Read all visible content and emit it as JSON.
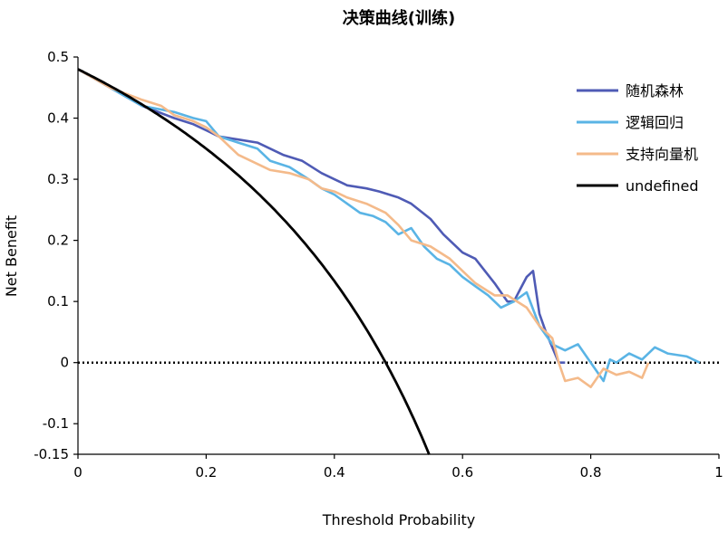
{
  "chart_data": {
    "type": "line",
    "title": "决策曲线(训练)",
    "xlabel": "Threshold Probability",
    "ylabel": "Net Benefit",
    "xlim": [
      0,
      1
    ],
    "ylim": [
      -0.15,
      0.5
    ],
    "xticks": [
      0,
      0.2,
      0.4,
      0.6,
      0.8,
      1
    ],
    "xtick_labels": [
      "0",
      "0.2",
      "0.4",
      "0.6",
      "0.8",
      "1"
    ],
    "yticks": [
      -0.15,
      -0.1,
      0,
      0.1,
      0.2,
      0.3,
      0.4,
      0.5
    ],
    "ytick_labels": [
      "-0.15",
      "-0.1",
      "0",
      "0.1",
      "0.2",
      "0.3",
      "0.4",
      "0.5"
    ],
    "legend_position": "top-right",
    "reference_line": {
      "name": "none",
      "y": 0,
      "style": "dotted",
      "color": "#000000"
    },
    "series": [
      {
        "name": "随机森林",
        "color": "#4F5BB5",
        "x": [
          0,
          0.05,
          0.1,
          0.15,
          0.18,
          0.2,
          0.22,
          0.25,
          0.28,
          0.3,
          0.32,
          0.35,
          0.38,
          0.4,
          0.42,
          0.45,
          0.47,
          0.5,
          0.52,
          0.55,
          0.57,
          0.6,
          0.62,
          0.65,
          0.67,
          0.68,
          0.69,
          0.7,
          0.71,
          0.72,
          0.73,
          0.75,
          0.76
        ],
        "y": [
          0.48,
          0.45,
          0.42,
          0.4,
          0.39,
          0.38,
          0.37,
          0.365,
          0.36,
          0.35,
          0.34,
          0.33,
          0.31,
          0.3,
          0.29,
          0.285,
          0.28,
          0.27,
          0.26,
          0.235,
          0.21,
          0.18,
          0.17,
          0.13,
          0.1,
          0.1,
          0.12,
          0.14,
          0.15,
          0.08,
          0.05,
          0.0,
          0.0
        ]
      },
      {
        "name": "逻辑回归",
        "color": "#5AB4E5",
        "x": [
          0,
          0.05,
          0.1,
          0.15,
          0.18,
          0.2,
          0.22,
          0.25,
          0.28,
          0.3,
          0.33,
          0.36,
          0.38,
          0.4,
          0.42,
          0.44,
          0.46,
          0.48,
          0.5,
          0.52,
          0.54,
          0.56,
          0.58,
          0.6,
          0.62,
          0.64,
          0.66,
          0.68,
          0.7,
          0.72,
          0.74,
          0.76,
          0.78,
          0.8,
          0.82,
          0.83,
          0.84,
          0.86,
          0.88,
          0.9,
          0.92,
          0.95,
          0.97
        ],
        "y": [
          0.48,
          0.45,
          0.42,
          0.41,
          0.4,
          0.395,
          0.37,
          0.36,
          0.35,
          0.33,
          0.32,
          0.3,
          0.285,
          0.275,
          0.26,
          0.245,
          0.24,
          0.23,
          0.21,
          0.22,
          0.19,
          0.17,
          0.16,
          0.14,
          0.125,
          0.11,
          0.09,
          0.1,
          0.115,
          0.06,
          0.03,
          0.02,
          0.03,
          0.0,
          -0.03,
          0.005,
          0.0,
          0.015,
          0.005,
          0.025,
          0.015,
          0.01,
          0.0
        ]
      },
      {
        "name": "支持向量机",
        "color": "#F4BA8A",
        "x": [
          0,
          0.05,
          0.1,
          0.13,
          0.15,
          0.18,
          0.2,
          0.22,
          0.25,
          0.28,
          0.3,
          0.33,
          0.36,
          0.38,
          0.4,
          0.42,
          0.45,
          0.48,
          0.5,
          0.52,
          0.55,
          0.58,
          0.6,
          0.62,
          0.65,
          0.67,
          0.7,
          0.72,
          0.74,
          0.75,
          0.76,
          0.78,
          0.8,
          0.82,
          0.84,
          0.86,
          0.88,
          0.89
        ],
        "y": [
          0.48,
          0.45,
          0.43,
          0.42,
          0.405,
          0.395,
          0.385,
          0.37,
          0.34,
          0.325,
          0.315,
          0.31,
          0.3,
          0.285,
          0.28,
          0.27,
          0.26,
          0.245,
          0.225,
          0.2,
          0.19,
          0.17,
          0.15,
          0.13,
          0.11,
          0.11,
          0.09,
          0.06,
          0.04,
          0.0,
          -0.03,
          -0.025,
          -0.04,
          -0.01,
          -0.02,
          -0.015,
          -0.025,
          0.0
        ]
      },
      {
        "name": "undefined",
        "color": "#000000",
        "function": "treat_all",
        "prevalence": 0.48,
        "x_range": [
          0,
          0.548
        ]
      }
    ]
  }
}
